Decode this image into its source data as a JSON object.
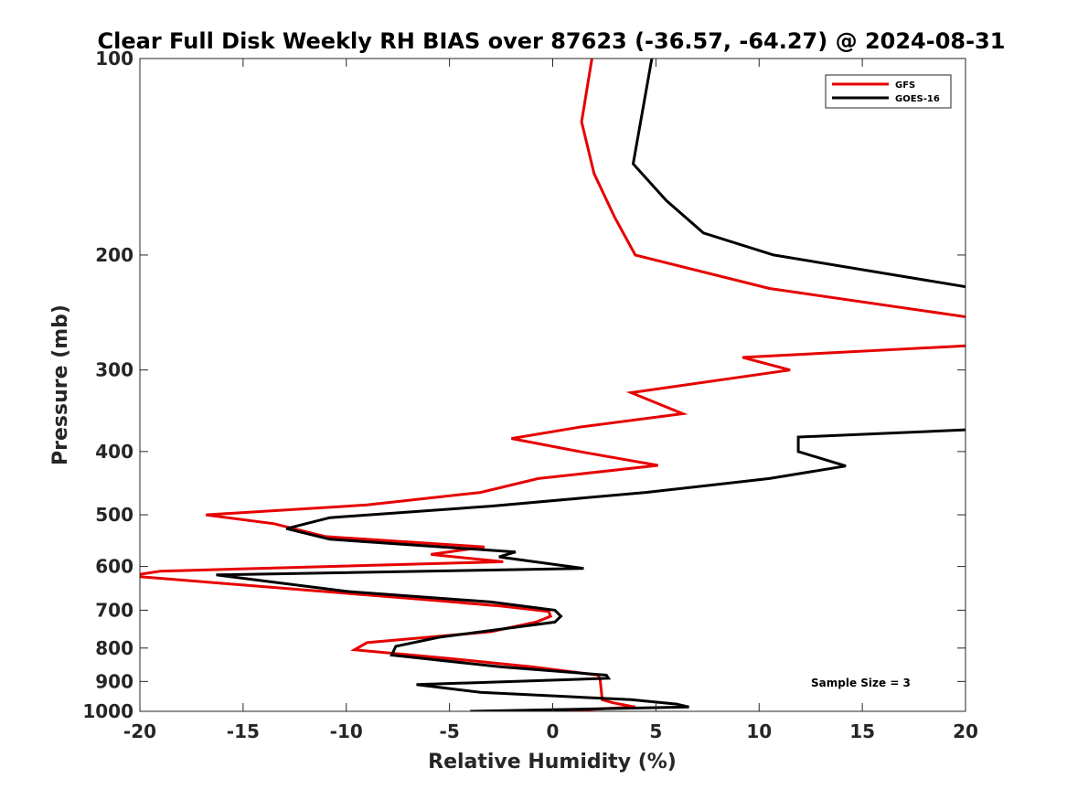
{
  "chart_data": {
    "type": "line",
    "title": "Clear Full Disk Weekly RH BIAS over 87623 (-36.57, -64.27) @ 2024-08-31",
    "xlabel": "Relative Humidity (%)",
    "ylabel": "Pressure (mb)",
    "xlim": [
      -20,
      20
    ],
    "ylim": [
      100,
      1000
    ],
    "yscale": "log",
    "yreversed": true,
    "xticks": [
      -20,
      -15,
      -10,
      -5,
      0,
      5,
      10,
      15,
      20
    ],
    "xtick_labels": [
      "-20",
      "-15",
      "-10",
      "-5",
      "0",
      "5",
      "10",
      "15",
      "20"
    ],
    "yticks": [
      100,
      200,
      300,
      400,
      500,
      600,
      700,
      800,
      900,
      1000
    ],
    "ytick_labels": [
      "100",
      "200",
      "300",
      "400",
      "500",
      "600",
      "700",
      "800",
      "900",
      "1000"
    ],
    "grid": false,
    "legend_position": "top-right",
    "annotation": "Sample Size = 3",
    "series": [
      {
        "name": "GFS",
        "color": "#e60000",
        "points": [
          [
            1.9,
            100
          ],
          [
            1.4,
            125
          ],
          [
            2.0,
            150
          ],
          [
            3.0,
            175
          ],
          [
            4.0,
            200
          ],
          [
            10.5,
            225
          ],
          [
            20.5,
            250
          ],
          [
            20.5,
            275
          ],
          [
            9.2,
            287
          ],
          [
            11.5,
            300
          ],
          [
            3.8,
            325
          ],
          [
            6.3,
            350
          ],
          [
            1.3,
            367
          ],
          [
            -2.0,
            382
          ],
          [
            1.3,
            400
          ],
          [
            5.1,
            420
          ],
          [
            -0.7,
            440
          ],
          [
            -3.5,
            462
          ],
          [
            -9.0,
            483
          ],
          [
            -16.8,
            500
          ],
          [
            -13.5,
            516
          ],
          [
            -11.0,
            540
          ],
          [
            -3.3,
            560
          ],
          [
            -5.9,
            575
          ],
          [
            -2.4,
            590
          ],
          [
            -19.0,
            610
          ],
          [
            -20.5,
            620
          ],
          [
            -12.5,
            650
          ],
          [
            -6.0,
            675
          ],
          [
            -2.5,
            690
          ],
          [
            -0.2,
            703
          ],
          [
            -0.1,
            715
          ],
          [
            -0.8,
            730
          ],
          [
            -3.0,
            755
          ],
          [
            -9.0,
            785
          ],
          [
            -9.6,
            805
          ],
          [
            -5.0,
            830
          ],
          [
            -1.0,
            855
          ],
          [
            2.2,
            880
          ],
          [
            2.3,
            895
          ],
          [
            2.4,
            960
          ],
          [
            2.9,
            970
          ],
          [
            4.0,
            985
          ],
          [
            0.1,
            1000
          ]
        ]
      },
      {
        "name": "GOES-16",
        "color": "#000000",
        "points": [
          [
            4.8,
            100
          ],
          [
            3.9,
            145
          ],
          [
            5.5,
            165
          ],
          [
            7.3,
            185
          ],
          [
            10.7,
            200
          ],
          [
            20.5,
            225
          ],
          [
            20.5,
            370
          ],
          [
            11.9,
            380
          ],
          [
            11.9,
            400
          ],
          [
            14.2,
            421
          ],
          [
            10.5,
            440
          ],
          [
            4.5,
            462
          ],
          [
            -3.0,
            485
          ],
          [
            -10.8,
            505
          ],
          [
            -12.9,
            525
          ],
          [
            -10.8,
            545
          ],
          [
            -1.8,
            570
          ],
          [
            -2.6,
            580
          ],
          [
            1.5,
            604
          ],
          [
            -16.3,
            618
          ],
          [
            -10.0,
            655
          ],
          [
            -3.0,
            680
          ],
          [
            0.1,
            700
          ],
          [
            0.4,
            715
          ],
          [
            0.1,
            730
          ],
          [
            -5.5,
            770
          ],
          [
            -7.6,
            795
          ],
          [
            -7.8,
            820
          ],
          [
            -2.5,
            855
          ],
          [
            2.6,
            880
          ],
          [
            2.7,
            890
          ],
          [
            -6.6,
            910
          ],
          [
            -3.5,
            935
          ],
          [
            3.8,
            960
          ],
          [
            6.0,
            975
          ],
          [
            6.6,
            985
          ],
          [
            -4.0,
            1000
          ]
        ]
      }
    ]
  }
}
